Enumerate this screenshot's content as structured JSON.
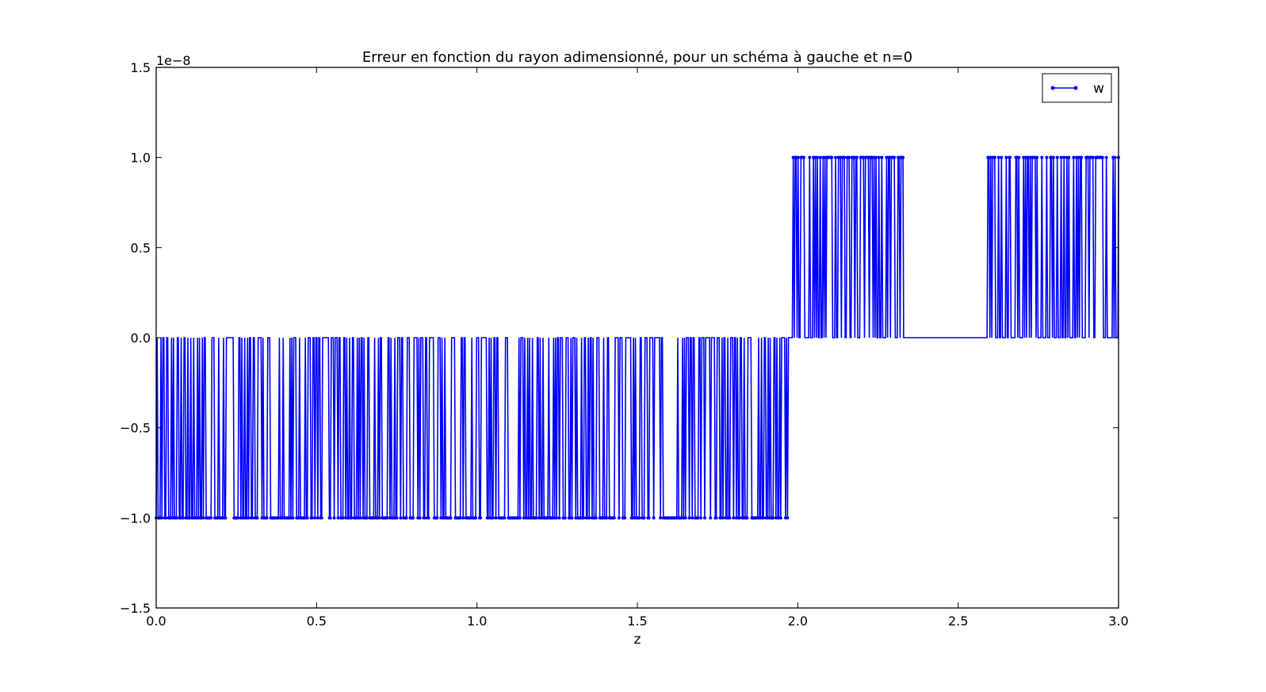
{
  "chart_data": {
    "type": "line",
    "title": "Erreur en fonction du rayon adimensionné, pour un schéma à gauche et n=0",
    "xlabel": "z",
    "ylabel": "",
    "y_offset_label": "1e−8",
    "xlim": [
      0.0,
      3.0
    ],
    "ylim": [
      -1.5,
      1.5
    ],
    "x_ticks": [
      0.0,
      0.5,
      1.0,
      1.5,
      2.0,
      2.5,
      3.0
    ],
    "x_tick_labels": [
      "0.0",
      "0.5",
      "1.0",
      "1.5",
      "2.0",
      "2.5",
      "3.0"
    ],
    "y_ticks": [
      -1.5,
      -1.0,
      -0.5,
      0.0,
      0.5,
      1.0,
      1.5
    ],
    "y_tick_labels": [
      "−1.5",
      "−1.0",
      "−0.5",
      "0.0",
      "0.5",
      "1.0",
      "1.5"
    ],
    "grid": false,
    "legend_position": "top-right",
    "series": [
      {
        "name": "w",
        "color": "#0000ff",
        "marker": "dot",
        "x_step": 0.003,
        "segments": [
          {
            "x_range": [
              0.0,
              1.98
            ],
            "levels": [
              0,
              -1
            ],
            "duty": 0.5
          },
          {
            "x_range": [
              1.98,
              2.33
            ],
            "levels": [
              0,
              1
            ],
            "duty": 0.5
          },
          {
            "x_range": [
              2.33,
              2.59
            ],
            "levels": [
              0,
              0
            ],
            "duty": 0.0
          },
          {
            "x_range": [
              2.59,
              3.0
            ],
            "levels": [
              0,
              1
            ],
            "duty": 0.38
          }
        ]
      }
    ]
  }
}
